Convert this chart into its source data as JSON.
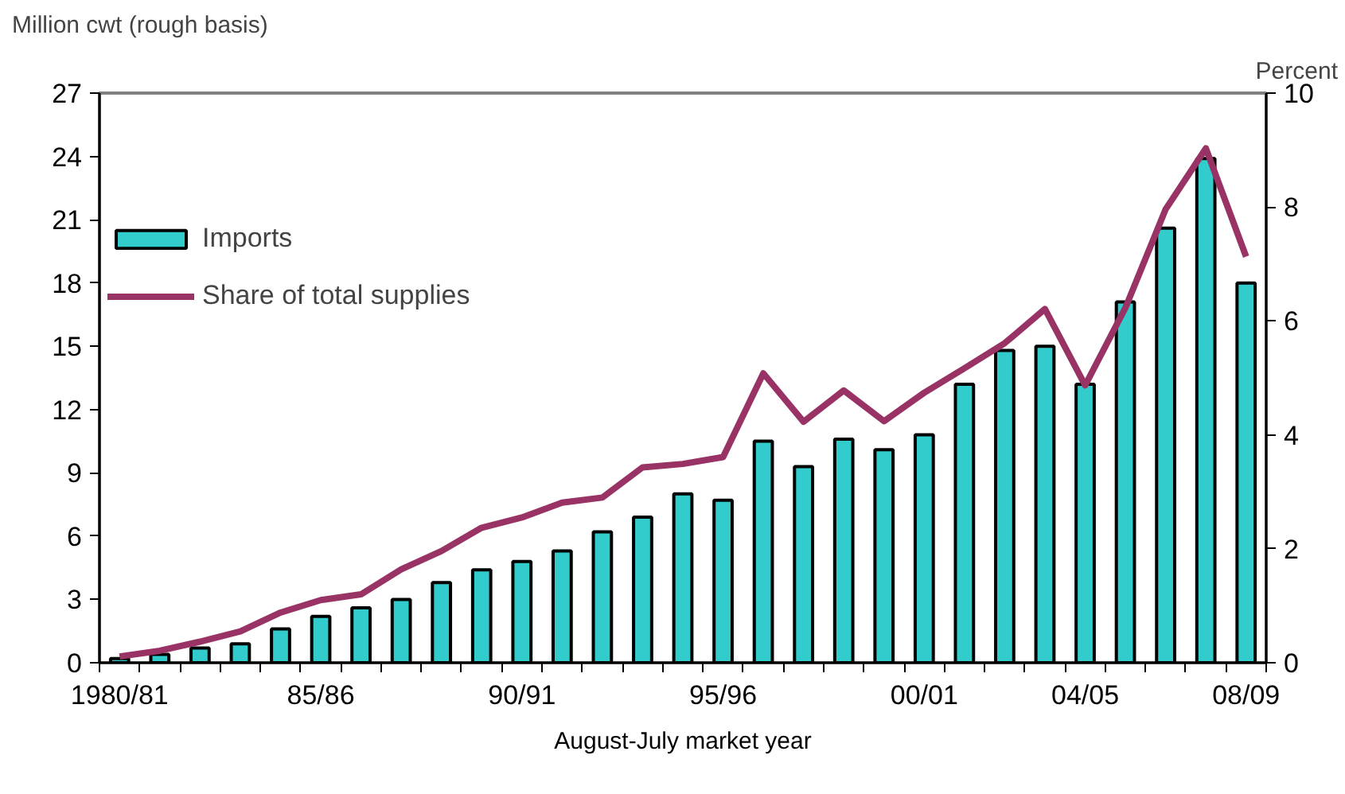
{
  "chart_data": {
    "type": "bar",
    "ylabel": "Million cwt (rough basis)",
    "y2label": "Percent",
    "xlabel": "August-July market year",
    "categories": [
      "1980/81",
      null,
      null,
      null,
      null,
      "85/86",
      null,
      null,
      null,
      null,
      "90/91",
      null,
      null,
      null,
      null,
      "95/96",
      null,
      null,
      null,
      null,
      "00/01",
      null,
      null,
      null,
      "04/05",
      null,
      null,
      null,
      "08/09"
    ],
    "series": [
      {
        "name": "Imports",
        "color": "#33cccc",
        "values": [
          0.2,
          0.4,
          0.7,
          0.9,
          1.6,
          2.2,
          2.6,
          3.0,
          3.8,
          4.4,
          4.8,
          5.3,
          6.2,
          6.9,
          8.0,
          7.7,
          10.5,
          9.3,
          10.6,
          10.1,
          10.8,
          13.2,
          14.8,
          15.0,
          13.2,
          17.1,
          20.6,
          23.9,
          18.0
        ]
      },
      {
        "name": "Share of total supplies",
        "type": "line",
        "axis": "y2",
        "color": "#993366",
        "values": [
          0.11,
          0.21,
          0.37,
          0.55,
          0.88,
          1.1,
          1.2,
          1.64,
          1.96,
          2.37,
          2.55,
          2.81,
          2.9,
          3.43,
          3.49,
          3.61,
          5.08,
          4.23,
          4.78,
          4.24,
          4.74,
          5.17,
          5.61,
          6.21,
          4.87,
          6.23,
          7.96,
          9.03,
          7.13
        ]
      }
    ],
    "ylim": [
      0,
      27
    ],
    "yticks": [
      0,
      3,
      6,
      9,
      12,
      15,
      18,
      21,
      24,
      27
    ],
    "y2lim": [
      0,
      10
    ],
    "y2ticks": [
      0,
      2,
      4,
      6,
      8,
      10
    ],
    "grid": false,
    "legend": "top left",
    "marker": "none",
    "line_style": "solid"
  }
}
